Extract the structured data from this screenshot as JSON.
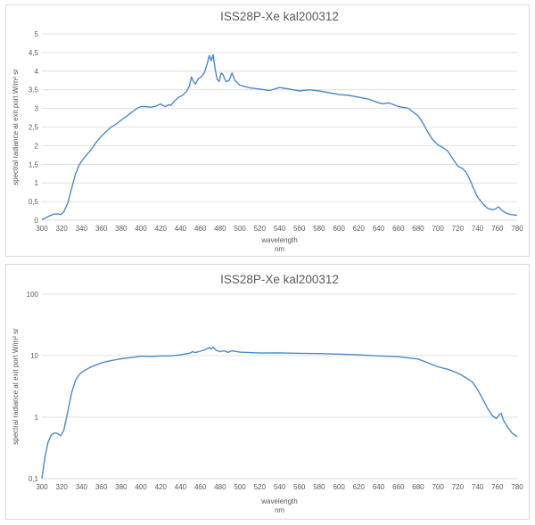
{
  "colors": {
    "series": "#4a8ac9",
    "grid": "#d9d9d9",
    "text": "#595959"
  },
  "chart_data": [
    {
      "type": "line",
      "title": "ISS28P-Xe kal200312",
      "xlabel": "wavelength\nnm",
      "ylabel": "spectral radiance at exit port W/m² sr",
      "x_ticks": [
        300,
        320,
        340,
        360,
        380,
        400,
        420,
        440,
        460,
        480,
        500,
        520,
        540,
        560,
        580,
        600,
        620,
        640,
        660,
        680,
        700,
        720,
        740,
        760,
        780
      ],
      "y_ticks": [
        "0",
        "0,5",
        "1",
        "1,5",
        "2",
        "2,5",
        "3",
        "3,5",
        "4",
        "4,5",
        "5"
      ],
      "xlim": [
        300,
        780
      ],
      "ylim": [
        0,
        5
      ],
      "yscale": "linear",
      "grid": true,
      "series": [
        {
          "points": [
            [
              300,
              0.02
            ],
            [
              304,
              0.06
            ],
            [
              308,
              0.12
            ],
            [
              312,
              0.16
            ],
            [
              316,
              0.17
            ],
            [
              319,
              0.15
            ],
            [
              322,
              0.22
            ],
            [
              326,
              0.45
            ],
            [
              330,
              0.85
            ],
            [
              334,
              1.25
            ],
            [
              338,
              1.5
            ],
            [
              342,
              1.65
            ],
            [
              346,
              1.78
            ],
            [
              350,
              1.9
            ],
            [
              355,
              2.1
            ],
            [
              360,
              2.25
            ],
            [
              365,
              2.38
            ],
            [
              370,
              2.5
            ],
            [
              375,
              2.58
            ],
            [
              380,
              2.68
            ],
            [
              385,
              2.78
            ],
            [
              390,
              2.88
            ],
            [
              395,
              2.98
            ],
            [
              400,
              3.05
            ],
            [
              405,
              3.05
            ],
            [
              410,
              3.03
            ],
            [
              415,
              3.06
            ],
            [
              420,
              3.12
            ],
            [
              422,
              3.08
            ],
            [
              425,
              3.05
            ],
            [
              428,
              3.1
            ],
            [
              430,
              3.08
            ],
            [
              434,
              3.2
            ],
            [
              438,
              3.3
            ],
            [
              442,
              3.35
            ],
            [
              446,
              3.45
            ],
            [
              449,
              3.6
            ],
            [
              451,
              3.85
            ],
            [
              453,
              3.72
            ],
            [
              455,
              3.65
            ],
            [
              458,
              3.8
            ],
            [
              461,
              3.85
            ],
            [
              464,
              3.95
            ],
            [
              467,
              4.2
            ],
            [
              469,
              4.42
            ],
            [
              471,
              4.28
            ],
            [
              473,
              4.44
            ],
            [
              475,
              4.05
            ],
            [
              477,
              3.78
            ],
            [
              479,
              3.72
            ],
            [
              481,
              3.95
            ],
            [
              483,
              3.9
            ],
            [
              486,
              3.72
            ],
            [
              489,
              3.75
            ],
            [
              492,
              3.95
            ],
            [
              495,
              3.75
            ],
            [
              500,
              3.62
            ],
            [
              510,
              3.55
            ],
            [
              520,
              3.52
            ],
            [
              530,
              3.48
            ],
            [
              540,
              3.56
            ],
            [
              550,
              3.52
            ],
            [
              560,
              3.47
            ],
            [
              570,
              3.5
            ],
            [
              580,
              3.47
            ],
            [
              590,
              3.42
            ],
            [
              600,
              3.37
            ],
            [
              610,
              3.35
            ],
            [
              620,
              3.3
            ],
            [
              630,
              3.25
            ],
            [
              640,
              3.15
            ],
            [
              645,
              3.12
            ],
            [
              650,
              3.15
            ],
            [
              655,
              3.1
            ],
            [
              660,
              3.05
            ],
            [
              670,
              3.0
            ],
            [
              680,
              2.8
            ],
            [
              685,
              2.6
            ],
            [
              690,
              2.35
            ],
            [
              695,
              2.15
            ],
            [
              700,
              2.02
            ],
            [
              705,
              1.95
            ],
            [
              710,
              1.85
            ],
            [
              715,
              1.65
            ],
            [
              720,
              1.45
            ],
            [
              725,
              1.38
            ],
            [
              728,
              1.3
            ],
            [
              732,
              1.1
            ],
            [
              736,
              0.85
            ],
            [
              740,
              0.62
            ],
            [
              745,
              0.45
            ],
            [
              750,
              0.32
            ],
            [
              755,
              0.28
            ],
            [
              758,
              0.3
            ],
            [
              761,
              0.36
            ],
            [
              764,
              0.28
            ],
            [
              768,
              0.2
            ],
            [
              772,
              0.16
            ],
            [
              776,
              0.14
            ],
            [
              780,
              0.13
            ]
          ]
        }
      ]
    },
    {
      "type": "line",
      "title": "ISS28P-Xe kal200312",
      "xlabel": "wavelength\nnm",
      "ylabel": "spectral radiance at exit port W/m² sr",
      "x_ticks": [
        300,
        320,
        340,
        360,
        380,
        400,
        420,
        440,
        460,
        480,
        500,
        520,
        540,
        560,
        580,
        600,
        620,
        640,
        660,
        680,
        700,
        720,
        740,
        760,
        780
      ],
      "y_ticks": [
        "0,1",
        "1",
        "10",
        "100"
      ],
      "xlim": [
        300,
        780
      ],
      "ylim": [
        0.1,
        100
      ],
      "yscale": "log",
      "grid": true,
      "series": [
        {
          "points": [
            [
              300,
              0.1
            ],
            [
              303,
              0.22
            ],
            [
              306,
              0.38
            ],
            [
              309,
              0.5
            ],
            [
              312,
              0.55
            ],
            [
              315,
              0.55
            ],
            [
              319,
              0.5
            ],
            [
              322,
              0.6
            ],
            [
              326,
              1.2
            ],
            [
              330,
              2.5
            ],
            [
              334,
              4.0
            ],
            [
              338,
              5.0
            ],
            [
              342,
              5.6
            ],
            [
              346,
              6.1
            ],
            [
              350,
              6.6
            ],
            [
              355,
              7.1
            ],
            [
              360,
              7.6
            ],
            [
              365,
              8.0
            ],
            [
              370,
              8.3
            ],
            [
              375,
              8.6
            ],
            [
              380,
              8.9
            ],
            [
              390,
              9.3
            ],
            [
              400,
              9.8
            ],
            [
              410,
              9.7
            ],
            [
              420,
              9.9
            ],
            [
              430,
              9.9
            ],
            [
              440,
              10.3
            ],
            [
              450,
              11.0
            ],
            [
              452,
              11.6
            ],
            [
              455,
              11.2
            ],
            [
              460,
              11.8
            ],
            [
              465,
              12.5
            ],
            [
              469,
              13.5
            ],
            [
              471,
              12.8
            ],
            [
              473,
              13.8
            ],
            [
              476,
              12.2
            ],
            [
              480,
              11.6
            ],
            [
              484,
              12.0
            ],
            [
              488,
              11.3
            ],
            [
              492,
              12.0
            ],
            [
              500,
              11.4
            ],
            [
              520,
              11.0
            ],
            [
              540,
              11.1
            ],
            [
              560,
              10.9
            ],
            [
              580,
              10.8
            ],
            [
              600,
              10.6
            ],
            [
              620,
              10.3
            ],
            [
              640,
              9.9
            ],
            [
              660,
              9.6
            ],
            [
              680,
              8.8
            ],
            [
              690,
              7.6
            ],
            [
              700,
              6.6
            ],
            [
              710,
              6.0
            ],
            [
              720,
              5.2
            ],
            [
              728,
              4.4
            ],
            [
              735,
              3.7
            ],
            [
              740,
              2.8
            ],
            [
              745,
              2.0
            ],
            [
              750,
              1.4
            ],
            [
              755,
              1.05
            ],
            [
              759,
              0.95
            ],
            [
              762,
              1.1
            ],
            [
              764,
              1.15
            ],
            [
              766,
              0.9
            ],
            [
              770,
              0.7
            ],
            [
              775,
              0.55
            ],
            [
              780,
              0.48
            ]
          ]
        }
      ]
    }
  ]
}
